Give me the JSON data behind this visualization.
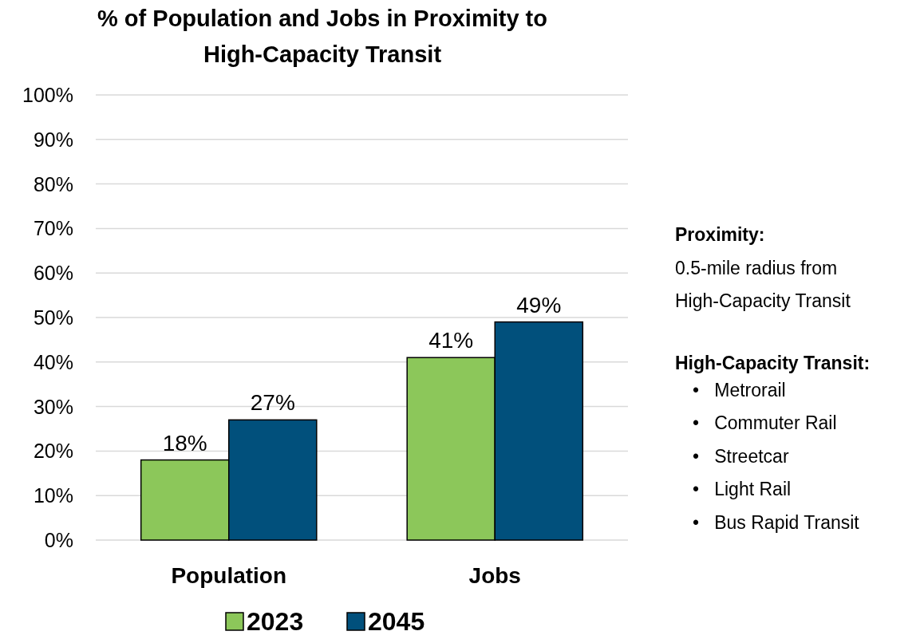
{
  "chart_data": {
    "type": "bar",
    "title": "% of Population and Jobs in Proximity to High-Capacity Transit",
    "categories": [
      "Population",
      "Jobs"
    ],
    "series": [
      {
        "name": "2023",
        "color": "#8cc75a",
        "values": [
          18,
          41
        ],
        "value_labels": [
          "18%",
          "41%"
        ]
      },
      {
        "name": "2045",
        "color": "#01507c",
        "values": [
          27,
          49
        ],
        "value_labels": [
          "27%",
          "49%"
        ]
      }
    ],
    "ylim": [
      0,
      100
    ],
    "yticks": [
      {
        "value": 0,
        "label": "0%"
      },
      {
        "value": 10,
        "label": "10%"
      },
      {
        "value": 20,
        "label": "20%"
      },
      {
        "value": 30,
        "label": "30%"
      },
      {
        "value": 40,
        "label": "40%"
      },
      {
        "value": 50,
        "label": "50%"
      },
      {
        "value": 60,
        "label": "60%"
      },
      {
        "value": 70,
        "label": "70%"
      },
      {
        "value": 80,
        "label": "80%"
      },
      {
        "value": 90,
        "label": "90%"
      },
      {
        "value": 100,
        "label": "100%"
      }
    ],
    "grid": "y",
    "legend": "bottom",
    "annotations": [
      "Proximity:",
      "0.5-mile radius from",
      "High-Capacity Transit",
      "High-Capacity Transit:",
      "•   Metrorail",
      "•   Commuter Rail",
      "•   Streetcar",
      "•   Light Rail",
      "•   Bus Rapid Transit"
    ]
  }
}
